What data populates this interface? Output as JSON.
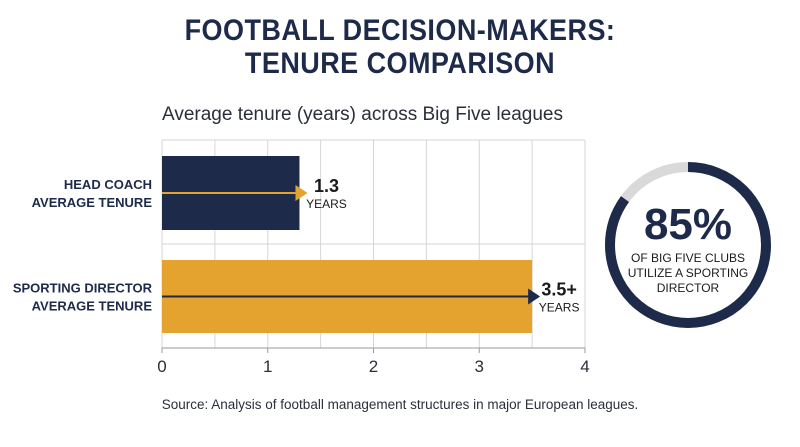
{
  "title_line1": "FOOTBALL DECISION-MAKERS:",
  "title_line2": "TENURE COMPARISON",
  "subtitle": "Average tenure (years) across Big Five leagues",
  "source": "Source: Analysis of football management structures in major European leagues.",
  "colors": {
    "navy": "#1d2a4a",
    "gold": "#e3a32e",
    "ring_track": "#d9d9d9",
    "grid": "#d6d6d6"
  },
  "stat": {
    "value": "85%",
    "line1": "OF BIG FIVE CLUBS",
    "line2": "UTILIZE A SPORTING",
    "line3": "DIRECTOR",
    "fraction": 0.85
  },
  "chart_data": {
    "type": "bar",
    "orientation": "horizontal",
    "title": "Average tenure (years) across Big Five leagues",
    "categories": [
      {
        "line1": "HEAD COACH",
        "line2": "AVERAGE TENURE"
      },
      {
        "line1": "SPORTING DIRECTOR",
        "line2": "AVERAGE TENURE"
      }
    ],
    "values": [
      1.3,
      3.5
    ],
    "value_labels": [
      "1.3",
      "3.5+"
    ],
    "unit_label": "YEARS",
    "bar_colors": [
      "#1d2a4a",
      "#e3a32e"
    ],
    "arrow_colors": [
      "#e3a32e",
      "#1d2a4a"
    ],
    "xlim": [
      0,
      4
    ],
    "xticks": [
      0,
      1,
      2,
      3,
      4
    ],
    "grid": true
  }
}
